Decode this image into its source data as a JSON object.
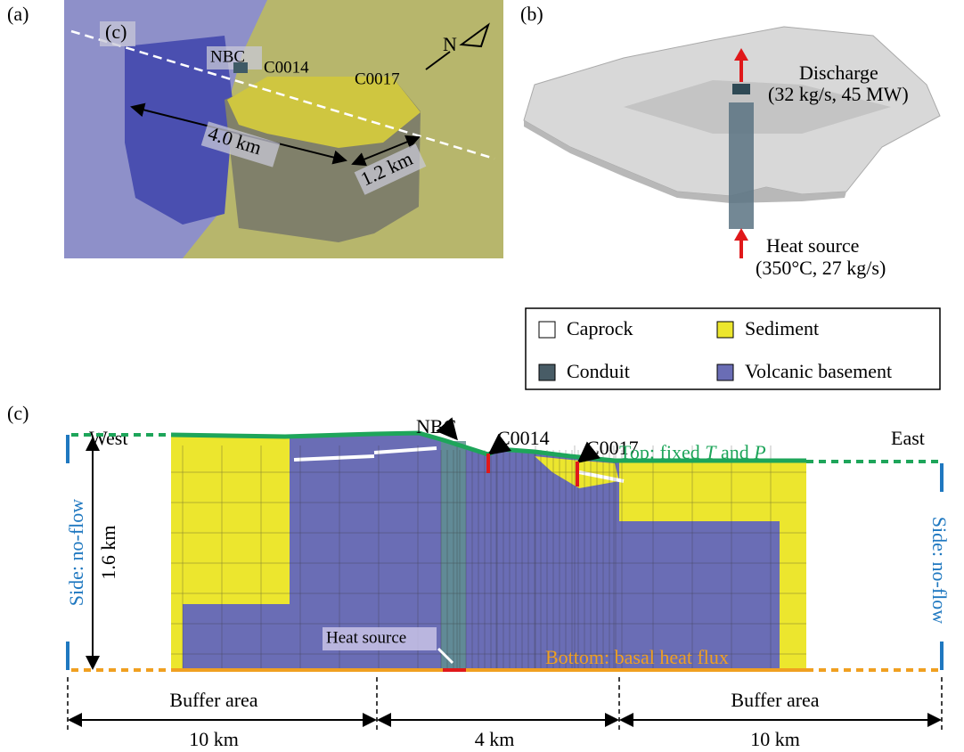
{
  "panel_a": {
    "label": "(a)",
    "section_marker": "(c)",
    "north": "N",
    "wells": [
      "NBC",
      "C0014",
      "C0017"
    ],
    "dimensions": [
      "4.0 km",
      "1.2 km"
    ]
  },
  "panel_b": {
    "label": "(b)",
    "discharge": [
      "Discharge",
      "(32 kg/s, 45 MW)"
    ],
    "heat_source": [
      "Heat source",
      "(350°C, 27 kg/s)"
    ]
  },
  "legend": {
    "items": [
      "Caprock",
      "Sediment",
      "Conduit",
      "Volcanic basement"
    ]
  },
  "panel_c": {
    "label": "(c)",
    "west": "West",
    "east": "East",
    "wells": [
      "NBC",
      "C0014",
      "C0017"
    ],
    "top": [
      "Top: fixed ",
      "T",
      " and ",
      "P"
    ],
    "side_left": "Side: no-flow",
    "side_right": "Side: no-flow",
    "depth": "1.6 km",
    "heat_source": "Heat source",
    "bottom": "Bottom: basal heat flux",
    "areas": [
      "Buffer area",
      "Buffer area"
    ],
    "widths": [
      "10 km",
      "4 km",
      "10 km"
    ]
  }
}
